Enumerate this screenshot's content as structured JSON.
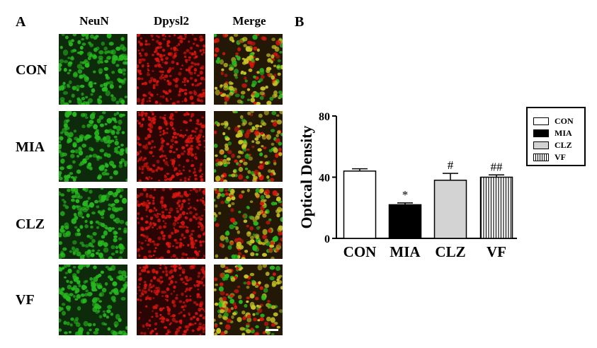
{
  "panel_labels": {
    "a": "A",
    "b": "B"
  },
  "micrograph_panel": {
    "column_headers": [
      "NeuN",
      "Dpysl2",
      "Merge"
    ],
    "row_labels": [
      "CON",
      "MIA",
      "CLZ",
      "VF"
    ],
    "channel_colors": {
      "neun": "#27b81f",
      "dpysl2": "#d9160f",
      "merge_overlap": "#c7c226"
    }
  },
  "chart_data": {
    "type": "bar",
    "categories": [
      "CON",
      "MIA",
      "CLZ",
      "VF"
    ],
    "values": [
      44,
      22,
      38,
      40
    ],
    "errors": [
      1.5,
      1.2,
      4.5,
      1.5
    ],
    "significance": [
      "",
      "*",
      "#",
      "##"
    ],
    "fills": [
      "#ffffff",
      "#000000",
      "#d3d3d3",
      "vertical-stripes"
    ],
    "ylabel": "Optical Density",
    "xlabel": "",
    "ylim": [
      0,
      80
    ],
    "yticks": [
      0,
      40,
      80
    ],
    "grid": false,
    "legend": {
      "placement": "right",
      "entries": [
        "CON",
        "MIA",
        "CLZ",
        "VF"
      ]
    }
  }
}
